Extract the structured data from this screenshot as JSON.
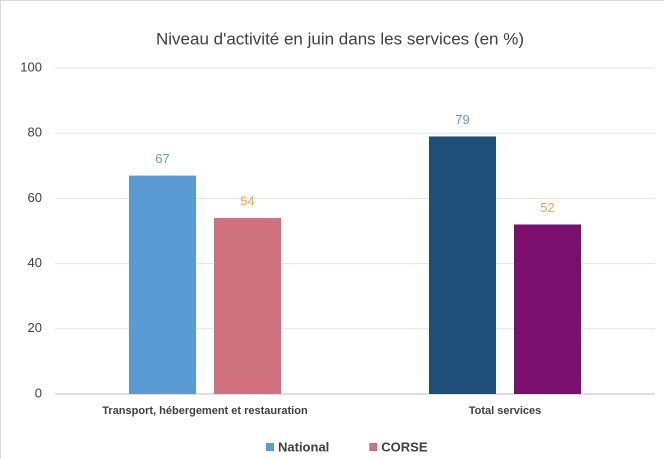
{
  "chart_data": {
    "type": "bar",
    "title": "Niveau d'activité en juin dans les services (en %)",
    "categories": [
      "Transport, hébergement et restauration",
      "Total services"
    ],
    "series": [
      {
        "name": "National",
        "color": "#5b9bd5",
        "colors": [
          "#5b9bd5",
          "#1f4e79"
        ],
        "label_color": "#5b9bd5",
        "values": [
          67,
          79
        ]
      },
      {
        "name": "CORSE",
        "color": "#d0717f",
        "colors": [
          "#d0717f",
          "#7b0f6e"
        ],
        "label_color": "#f4a742",
        "values": [
          54,
          52
        ]
      }
    ],
    "ylim": [
      0,
      100
    ],
    "yticks": [
      0,
      20,
      40,
      60,
      80,
      100
    ],
    "grid": true,
    "legend": "bottom"
  }
}
